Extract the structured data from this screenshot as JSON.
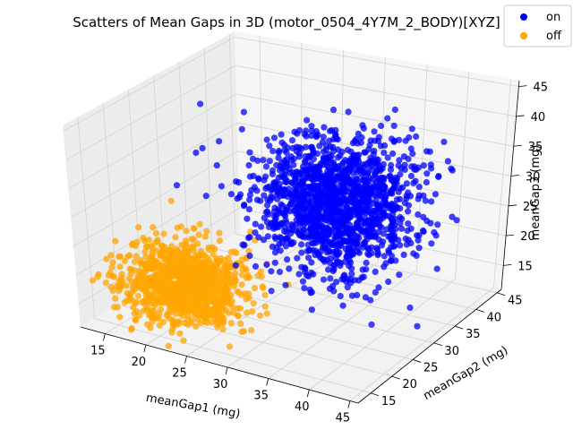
{
  "chart_data": {
    "type": "scatter",
    "projection": "3d",
    "title": "Scatters of Mean Gaps in 3D (motor_0504_4Y7M_2_BODY)[XYZ]",
    "xlabel": "meanGap1 (mg)",
    "ylabel": "meanGap2 (mg)",
    "zlabel": "meanGap3 (mg)",
    "xlim": [
      12,
      46
    ],
    "ylim": [
      12,
      46
    ],
    "zlim": [
      11,
      46
    ],
    "xticks": [
      "15",
      "20",
      "25",
      "30",
      "35",
      "40",
      "45"
    ],
    "yticks": [
      "15",
      "20",
      "25",
      "30",
      "35",
      "40",
      "45"
    ],
    "zticks": [
      "15",
      "20",
      "25",
      "30",
      "35",
      "40",
      "45"
    ],
    "grid": true,
    "legend": {
      "placement": "top-right",
      "entries": [
        "on",
        "off"
      ]
    },
    "series": [
      {
        "name": "on",
        "color": "#0000ff",
        "distribution": "dense gaussian cluster",
        "center": [
          34,
          30,
          30
        ],
        "spread": [
          4.5,
          4.0,
          5.0
        ],
        "count": 1500
      },
      {
        "name": "off",
        "color": "#ffa500",
        "distribution": "dense gaussian cluster",
        "center": [
          20,
          21,
          17
        ],
        "spread": [
          3.5,
          3.0,
          3.0
        ],
        "count": 1100
      }
    ]
  }
}
